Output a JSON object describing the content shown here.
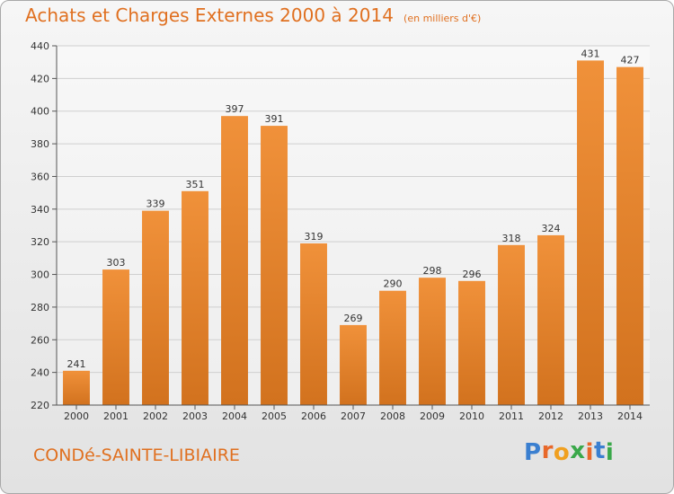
{
  "chart_data": {
    "type": "bar",
    "title": "Achats et Charges Externes 2000 à 2014",
    "subtitle": "(en milliers d'€)",
    "categories": [
      "2000",
      "2001",
      "2002",
      "2003",
      "2004",
      "2005",
      "2006",
      "2007",
      "2008",
      "2009",
      "2010",
      "2011",
      "2012",
      "2013",
      "2014"
    ],
    "values": [
      241,
      303,
      339,
      351,
      397,
      391,
      319,
      269,
      290,
      298,
      296,
      318,
      324,
      431,
      427
    ],
    "ylim": [
      220,
      440
    ],
    "yticks": [
      220,
      240,
      260,
      280,
      300,
      320,
      340,
      360,
      380,
      400,
      420,
      440
    ],
    "grid": true,
    "bar_color": "#f0913a",
    "bar_color_dark": "#d2721e"
  },
  "footer": {
    "commune": "CONDé-SAINTE-LIBIAIRE"
  },
  "brand": {
    "letters": [
      {
        "ch": "P",
        "color": "#3a7fd0"
      },
      {
        "ch": "r",
        "color": "#e8682a"
      },
      {
        "ch": "o",
        "color": "#f0a020"
      },
      {
        "ch": "x",
        "color": "#3aa84a"
      },
      {
        "ch": "i",
        "color": "#e8682a"
      },
      {
        "ch": "t",
        "color": "#3a7fd0"
      },
      {
        "ch": "i",
        "color": "#3aa84a"
      }
    ]
  }
}
